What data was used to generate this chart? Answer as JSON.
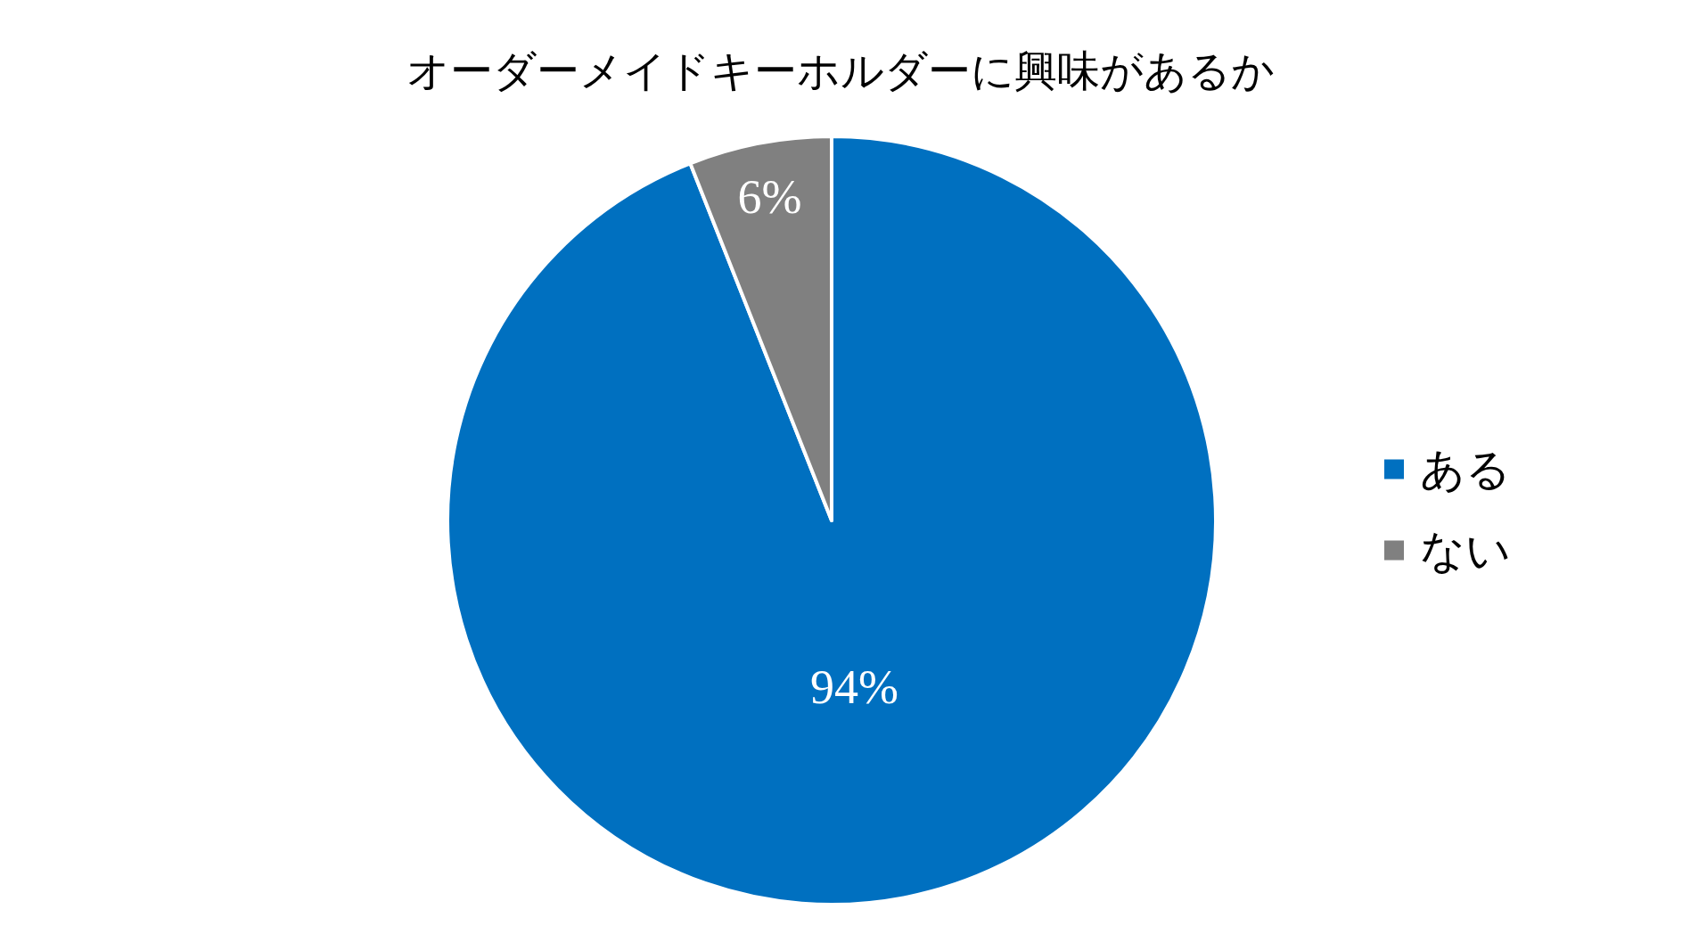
{
  "chart_data": {
    "type": "pie",
    "title": "オーダーメイドキーホルダーに興味があるか",
    "categories": [
      "ある",
      "ない"
    ],
    "values": [
      94,
      6
    ],
    "colors": [
      "#0070c0",
      "#808080"
    ],
    "value_labels": [
      "94%",
      "6%"
    ],
    "legend": "right"
  }
}
